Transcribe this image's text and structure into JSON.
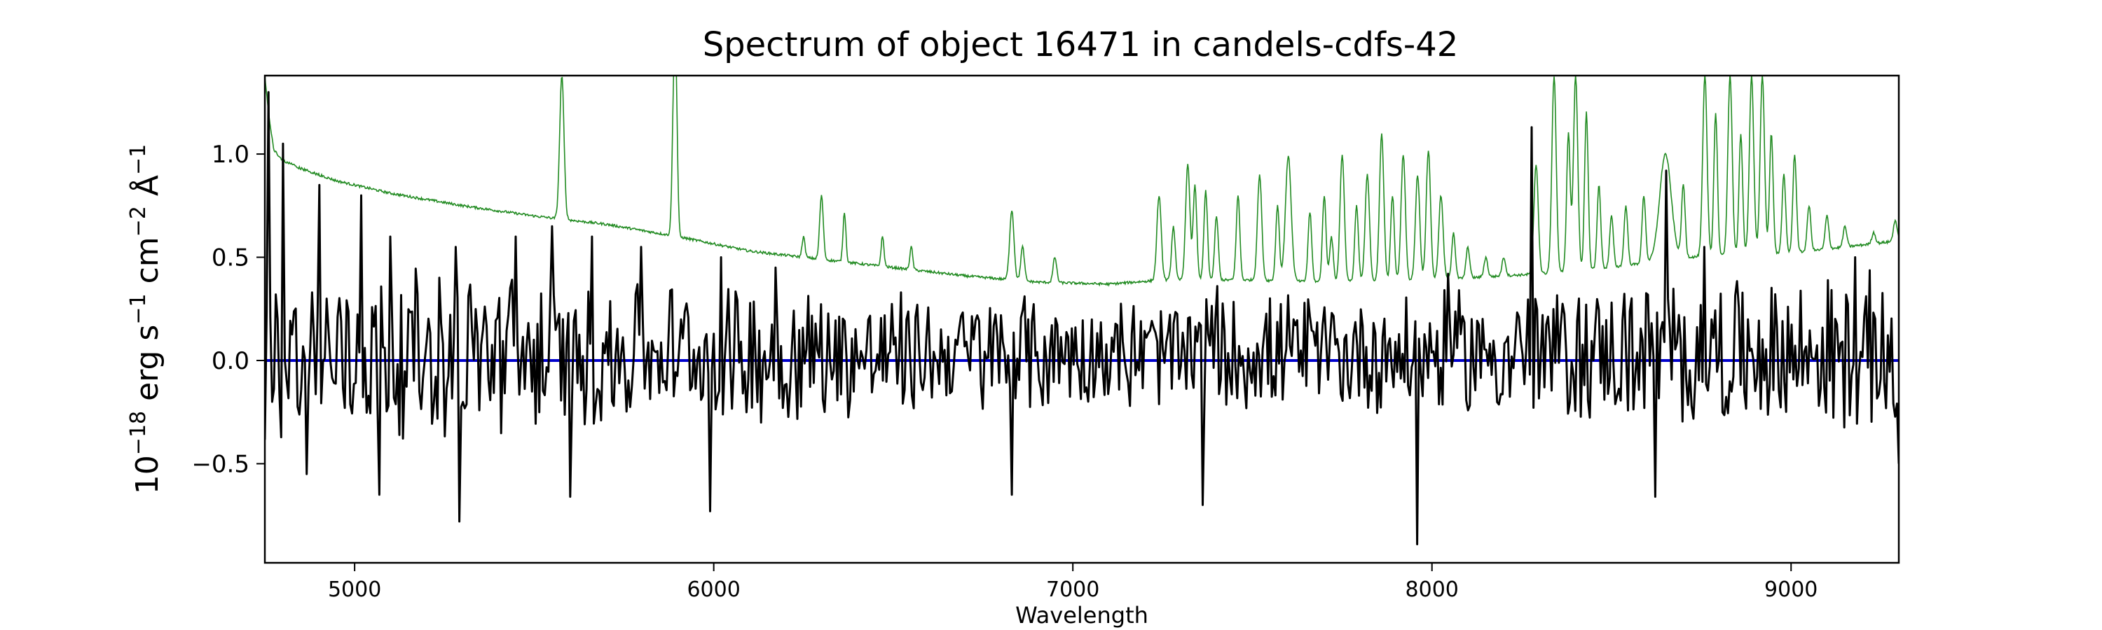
{
  "chart_data": {
    "type": "line",
    "title": "Spectrum of object 16471 in candels-cdfs-42",
    "xlabel": "Wavelength",
    "ylabel": {
      "base": "10",
      "exp1": "−18",
      "mid1": " erg s",
      "exp2": "−1",
      "mid2": " cm",
      "exp3": "−2",
      "mid3": " Å",
      "exp4": "−1"
    },
    "xlim": [
      4750,
      9300
    ],
    "ylim": [
      -0.98,
      1.38
    ],
    "x_ticks": [
      5000,
      6000,
      7000,
      8000,
      9000
    ],
    "x_tick_labels": [
      "5000",
      "6000",
      "7000",
      "8000",
      "9000"
    ],
    "y_ticks": [
      -0.5,
      0.0,
      0.5,
      1.0
    ],
    "y_tick_labels": [
      "−0.5",
      "0.0",
      "0.5",
      "1.0"
    ],
    "grid": false,
    "colors": {
      "flux": "#000000",
      "error": "#228B22",
      "zero": "#0000cc"
    },
    "series": [
      {
        "role": "zero-line",
        "x": [
          4750,
          9300
        ],
        "y": [
          0.0,
          0.0
        ]
      },
      {
        "role": "error",
        "continuum": [
          [
            4750,
            1.38
          ],
          [
            4760,
            1.2
          ],
          [
            4775,
            1.02
          ],
          [
            4800,
            0.97
          ],
          [
            4850,
            0.93
          ],
          [
            4950,
            0.87
          ],
          [
            5100,
            0.81
          ],
          [
            5300,
            0.75
          ],
          [
            5500,
            0.7
          ],
          [
            5700,
            0.66
          ],
          [
            5900,
            0.6
          ],
          [
            6100,
            0.53
          ],
          [
            6300,
            0.49
          ],
          [
            6500,
            0.45
          ],
          [
            6700,
            0.41
          ],
          [
            6900,
            0.38
          ],
          [
            7100,
            0.37
          ],
          [
            7250,
            0.39
          ],
          [
            7500,
            0.39
          ],
          [
            7700,
            0.38
          ],
          [
            8000,
            0.39
          ],
          [
            8300,
            0.42
          ],
          [
            8500,
            0.45
          ],
          [
            8700,
            0.5
          ],
          [
            9000,
            0.52
          ],
          [
            9300,
            0.58
          ]
        ],
        "lines": [
          [
            5577,
            1.38,
            6
          ],
          [
            5890,
            1.38,
            5
          ],
          [
            5896,
            1.0,
            4
          ],
          [
            6300,
            0.8,
            5
          ],
          [
            6364,
            0.72,
            4
          ],
          [
            6250,
            0.6,
            4
          ],
          [
            6470,
            0.6,
            4
          ],
          [
            6550,
            0.55,
            4
          ],
          [
            6830,
            0.73,
            6
          ],
          [
            6860,
            0.55,
            5
          ],
          [
            6950,
            0.5,
            5
          ],
          [
            7240,
            0.8,
            6
          ],
          [
            7280,
            0.65,
            5
          ],
          [
            7320,
            0.95,
            6
          ],
          [
            7340,
            0.85,
            5
          ],
          [
            7370,
            0.82,
            5
          ],
          [
            7400,
            0.7,
            5
          ],
          [
            7460,
            0.8,
            5
          ],
          [
            7520,
            0.9,
            6
          ],
          [
            7570,
            0.75,
            5
          ],
          [
            7600,
            0.99,
            8
          ],
          [
            7660,
            0.72,
            5
          ],
          [
            7700,
            0.8,
            5
          ],
          [
            7720,
            0.6,
            5
          ],
          [
            7750,
            1.0,
            6
          ],
          [
            7790,
            0.75,
            5
          ],
          [
            7820,
            0.9,
            6
          ],
          [
            7860,
            1.1,
            6
          ],
          [
            7890,
            0.8,
            5
          ],
          [
            7920,
            1.0,
            6
          ],
          [
            7960,
            0.9,
            6
          ],
          [
            7990,
            1.02,
            6
          ],
          [
            8025,
            0.8,
            6
          ],
          [
            8060,
            0.62,
            5
          ],
          [
            8100,
            0.55,
            5
          ],
          [
            8150,
            0.5,
            5
          ],
          [
            8200,
            0.5,
            5
          ],
          [
            8290,
            0.95,
            6
          ],
          [
            8340,
            1.38,
            6
          ],
          [
            8380,
            1.1,
            5
          ],
          [
            8400,
            1.38,
            6
          ],
          [
            8430,
            1.2,
            5
          ],
          [
            8465,
            0.85,
            5
          ],
          [
            8500,
            0.7,
            5
          ],
          [
            8540,
            0.75,
            5
          ],
          [
            8590,
            0.8,
            5
          ],
          [
            8650,
            1.0,
            16
          ],
          [
            8700,
            0.85,
            5
          ],
          [
            8760,
            1.38,
            6
          ],
          [
            8790,
            1.2,
            5
          ],
          [
            8830,
            1.38,
            6
          ],
          [
            8860,
            1.1,
            5
          ],
          [
            8890,
            1.38,
            6
          ],
          [
            8920,
            1.38,
            6
          ],
          [
            8945,
            1.1,
            5
          ],
          [
            8980,
            0.9,
            5
          ],
          [
            9010,
            1.0,
            5
          ],
          [
            9050,
            0.75,
            5
          ],
          [
            9100,
            0.7,
            5
          ],
          [
            9150,
            0.65,
            5
          ],
          [
            9230,
            0.62,
            5
          ],
          [
            9290,
            0.68,
            5
          ]
        ]
      },
      {
        "role": "flux",
        "x_start": 4750,
        "x_end": 9300,
        "n_points": 900,
        "noise_envelope": [
          [
            4750,
            0.5
          ],
          [
            5500,
            0.45
          ],
          [
            6500,
            0.35
          ],
          [
            7300,
            0.33
          ],
          [
            8000,
            0.35
          ],
          [
            8500,
            0.4
          ],
          [
            9300,
            0.45
          ]
        ],
        "peaks": [
          [
            4760,
            1.3
          ],
          [
            4800,
            1.05
          ],
          [
            4900,
            0.85
          ],
          [
            5020,
            0.8
          ],
          [
            5100,
            0.6
          ],
          [
            5280,
            0.55
          ],
          [
            5450,
            0.6
          ],
          [
            5550,
            0.65
          ],
          [
            5660,
            0.6
          ],
          [
            5800,
            0.55
          ],
          [
            6020,
            0.5
          ],
          [
            6170,
            0.45
          ],
          [
            7400,
            0.36
          ],
          [
            8045,
            0.42
          ],
          [
            8280,
            1.13
          ],
          [
            8650,
            0.92
          ],
          [
            8760,
            0.55
          ],
          [
            9180,
            0.5
          ]
        ],
        "troughs": [
          [
            4865,
            -0.55
          ],
          [
            5070,
            -0.65
          ],
          [
            5290,
            -0.78
          ],
          [
            5600,
            -0.66
          ],
          [
            5990,
            -0.73
          ],
          [
            6830,
            -0.65
          ],
          [
            7360,
            -0.7
          ],
          [
            7960,
            -0.89
          ],
          [
            8620,
            -0.66
          ],
          [
            9300,
            -0.5
          ]
        ]
      }
    ]
  }
}
